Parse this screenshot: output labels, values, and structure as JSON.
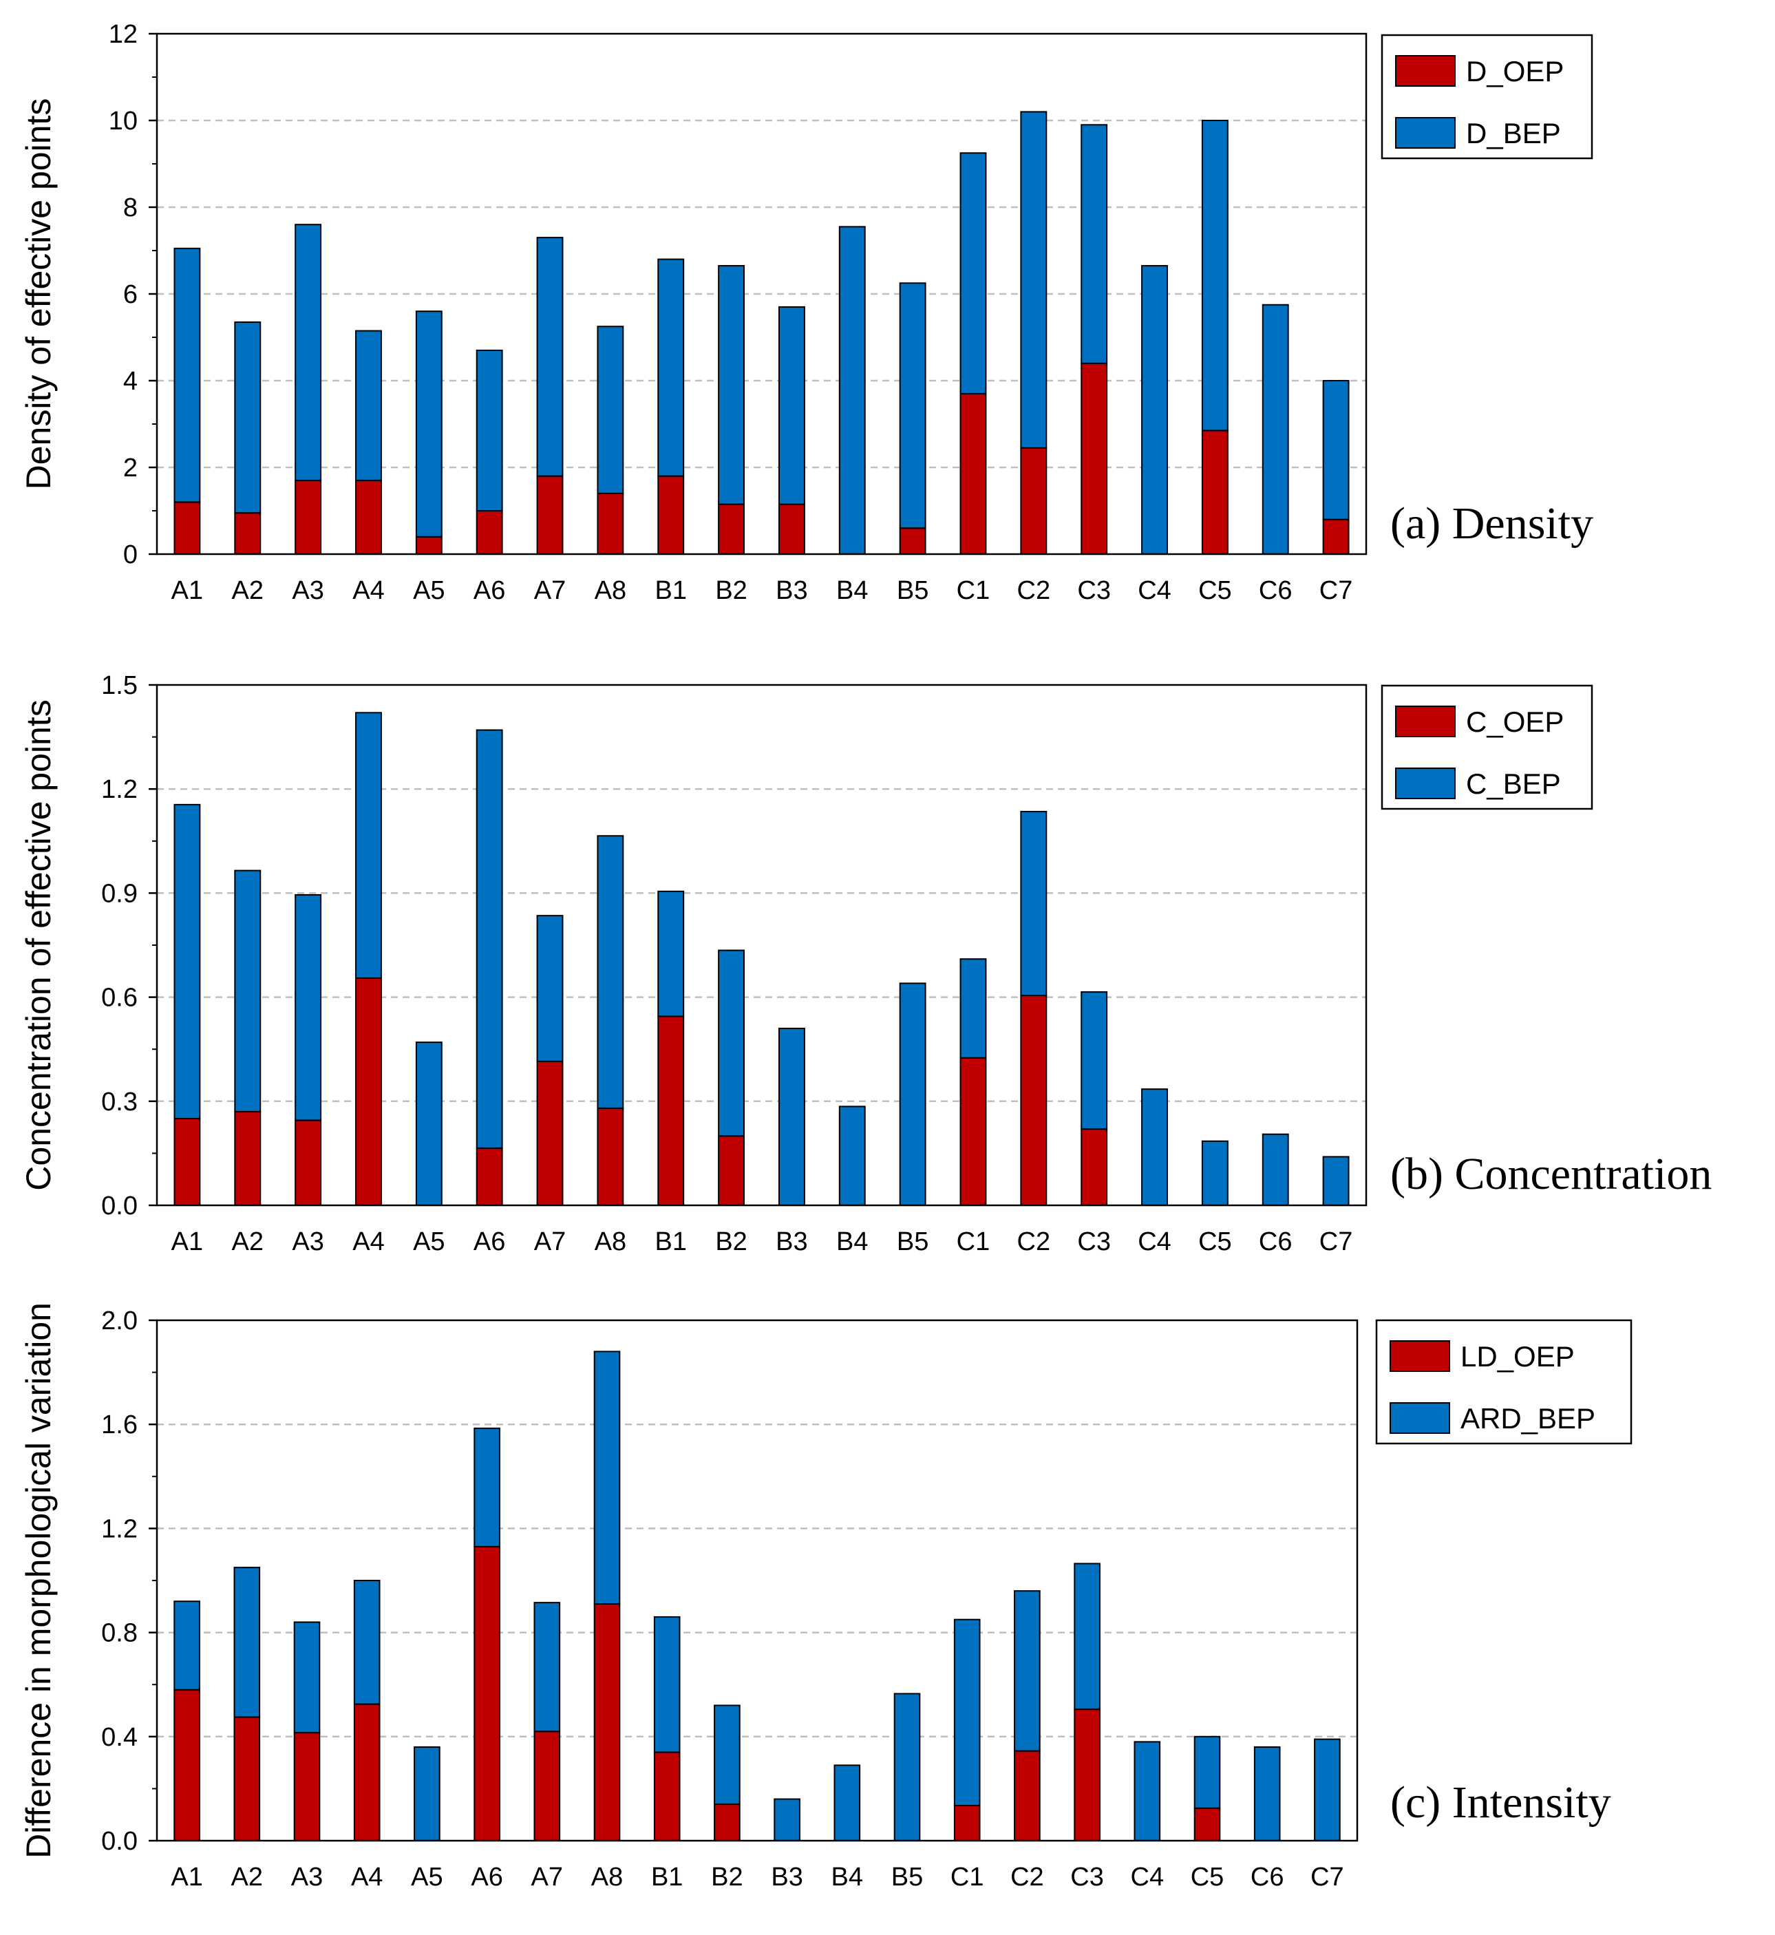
{
  "colors": {
    "oep": "#C00000",
    "bep": "#0070C0",
    "grid": "#BFBFBF",
    "axis": "#000000"
  },
  "chart_data": [
    {
      "type": "bar",
      "stacked": true,
      "title": "(a) Density",
      "ylabel": "Density of effective points",
      "xlabel": "",
      "ylim": [
        0,
        12
      ],
      "yticks": [
        0,
        2,
        4,
        6,
        8,
        10,
        12
      ],
      "ytick_labels": [
        "0",
        "2",
        "4",
        "6",
        "8",
        "10",
        "12"
      ],
      "grid": true,
      "legend_position": "top-right, outside plot area",
      "categories": [
        "A1",
        "A2",
        "A3",
        "A4",
        "A5",
        "A6",
        "A7",
        "A8",
        "B1",
        "B2",
        "B3",
        "B4",
        "B5",
        "C1",
        "C2",
        "C3",
        "C4",
        "C5",
        "C6",
        "C7"
      ],
      "series": [
        {
          "name": "D_OEP",
          "color": "#C00000",
          "values": [
            1.2,
            0.95,
            1.7,
            1.7,
            0.4,
            1.0,
            1.8,
            1.4,
            1.8,
            1.15,
            1.15,
            0,
            0.6,
            3.7,
            2.45,
            4.4,
            0,
            2.85,
            0,
            0.8
          ]
        },
        {
          "name": "D_BEP",
          "color": "#0070C0",
          "values": [
            5.85,
            4.4,
            5.9,
            3.45,
            5.2,
            3.7,
            5.5,
            3.85,
            5.0,
            5.5,
            4.55,
            7.55,
            5.65,
            5.55,
            7.75,
            5.5,
            6.65,
            7.15,
            5.75,
            3.2
          ]
        }
      ]
    },
    {
      "type": "bar",
      "stacked": true,
      "title": "(b) Concentration",
      "ylabel": "Concentration of effective points",
      "xlabel": "",
      "ylim": [
        0,
        1.5
      ],
      "yticks": [
        0,
        0.3,
        0.6,
        0.9,
        1.2,
        1.5
      ],
      "ytick_labels": [
        "0.0",
        "0.3",
        "0.6",
        "0.9",
        "1.2",
        "1.5"
      ],
      "grid": true,
      "legend_position": "top-right, outside plot area",
      "categories": [
        "A1",
        "A2",
        "A3",
        "A4",
        "A5",
        "A6",
        "A7",
        "A8",
        "B1",
        "B2",
        "B3",
        "B4",
        "B5",
        "C1",
        "C2",
        "C3",
        "C4",
        "C5",
        "C6",
        "C7"
      ],
      "series": [
        {
          "name": "C_OEP",
          "color": "#C00000",
          "values": [
            0.25,
            0.27,
            0.245,
            0.655,
            0,
            0.165,
            0.415,
            0.28,
            0.545,
            0.2,
            0,
            0,
            0,
            0.425,
            0.605,
            0.22,
            0,
            0,
            0,
            0
          ]
        },
        {
          "name": "C_BEP",
          "color": "#0070C0",
          "values": [
            0.905,
            0.695,
            0.65,
            0.765,
            0.47,
            1.205,
            0.42,
            0.785,
            0.36,
            0.535,
            0.51,
            0.285,
            0.64,
            0.285,
            0.53,
            0.395,
            0.335,
            0.185,
            0.205,
            0.14
          ]
        }
      ]
    },
    {
      "type": "bar",
      "stacked": true,
      "title": "(c) Intensity",
      "ylabel": "Difference in morphological variation",
      "xlabel": "",
      "ylim": [
        0,
        2.0
      ],
      "yticks": [
        0,
        0.4,
        0.8,
        1.2,
        1.6,
        2.0
      ],
      "ytick_labels": [
        "0.0",
        "0.4",
        "0.8",
        "1.2",
        "1.6",
        "2.0"
      ],
      "grid": true,
      "legend_position": "top-right, outside plot area",
      "categories": [
        "A1",
        "A2",
        "A3",
        "A4",
        "A5",
        "A6",
        "A7",
        "A8",
        "B1",
        "B2",
        "B3",
        "B4",
        "B5",
        "C1",
        "C2",
        "C3",
        "C4",
        "C5",
        "C6",
        "C7"
      ],
      "series": [
        {
          "name": "LD_OEP",
          "color": "#C00000",
          "values": [
            0.58,
            0.475,
            0.415,
            0.525,
            0,
            1.13,
            0.42,
            0.91,
            0.34,
            0.14,
            0,
            0,
            0,
            0.135,
            0.345,
            0.505,
            0,
            0.125,
            0,
            0
          ]
        },
        {
          "name": "ARD_BEP",
          "color": "#0070C0",
          "values": [
            0.34,
            0.575,
            0.425,
            0.475,
            0.36,
            0.455,
            0.495,
            0.97,
            0.52,
            0.38,
            0.16,
            0.29,
            0.565,
            0.715,
            0.615,
            0.56,
            0.38,
            0.275,
            0.36,
            0.39
          ]
        }
      ]
    }
  ]
}
